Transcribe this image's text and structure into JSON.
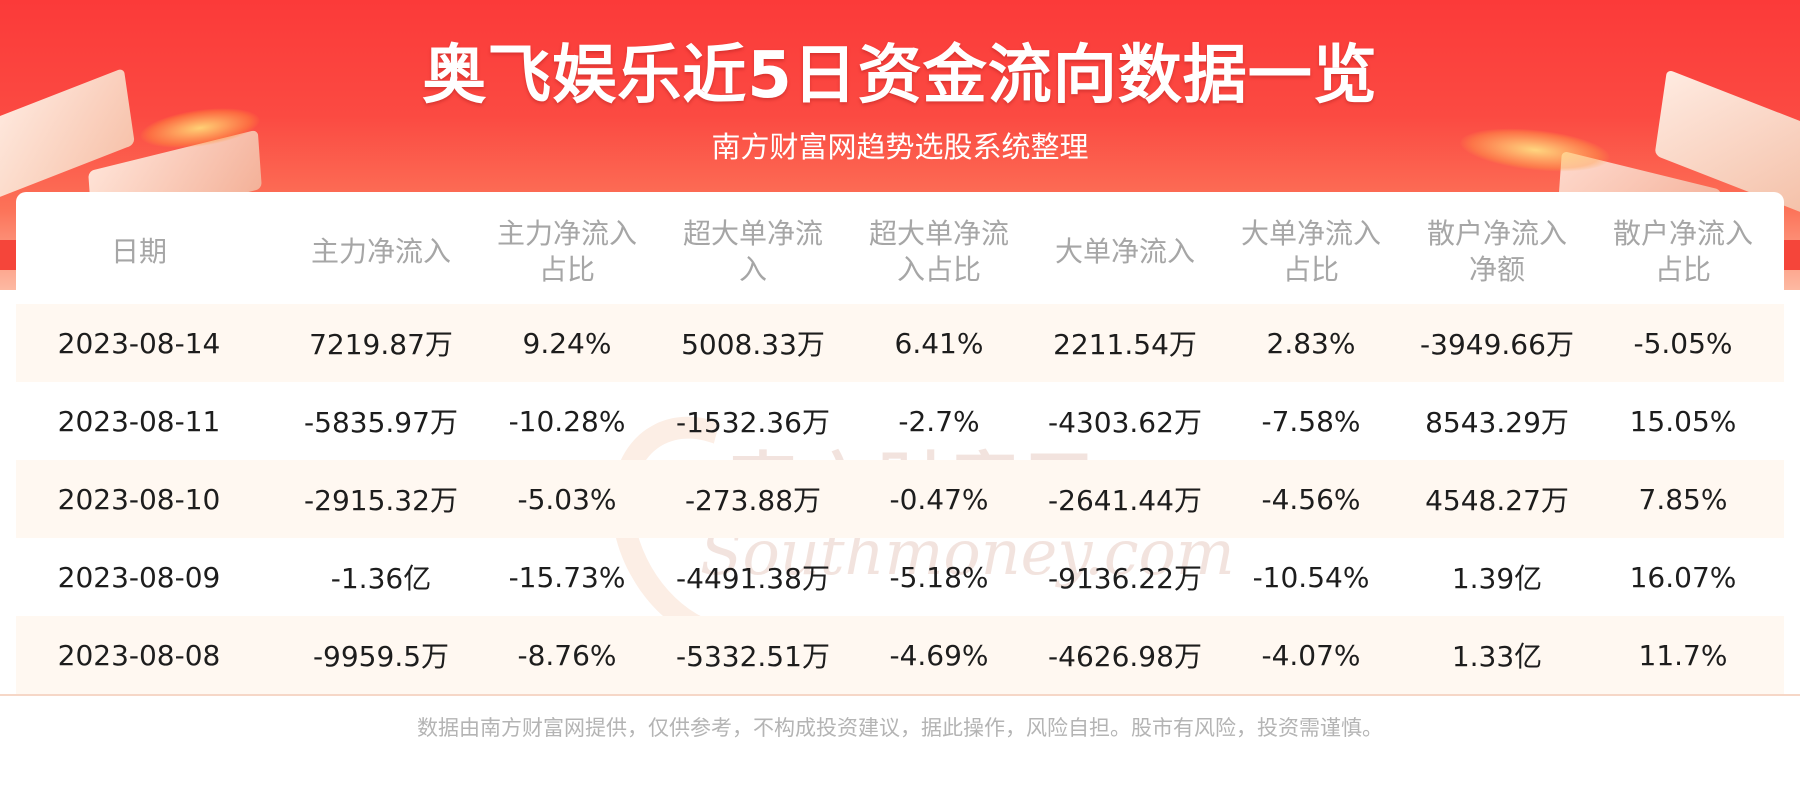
{
  "header": {
    "title": "奥飞娱乐近5日资金流向数据一览",
    "subtitle": "南方财富网趋势选股系统整理"
  },
  "table": {
    "columns": [
      "日期",
      "主力净流入",
      "主力净流入占比",
      "超大单净流入",
      "超大单净流入占比",
      "大单净流入",
      "大单净流入占比",
      "散户净流入净额",
      "散户净流入占比"
    ],
    "rows": [
      [
        "2023-08-14",
        "7219.87万",
        "9.24%",
        "5008.33万",
        "6.41%",
        "2211.54万",
        "2.83%",
        "-3949.66万",
        "-5.05%"
      ],
      [
        "2023-08-11",
        "-5835.97万",
        "-10.28%",
        "-1532.36万",
        "-2.7%",
        "-4303.62万",
        "-7.58%",
        "8543.29万",
        "15.05%"
      ],
      [
        "2023-08-10",
        "-2915.32万",
        "-5.03%",
        "-273.88万",
        "-0.47%",
        "-2641.44万",
        "-4.56%",
        "4548.27万",
        "7.85%"
      ],
      [
        "2023-08-09",
        "-1.36亿",
        "-15.73%",
        "-4491.38万",
        "-5.18%",
        "-9136.22万",
        "-10.54%",
        "1.39亿",
        "16.07%"
      ],
      [
        "2023-08-08",
        "-9959.5万",
        "-8.76%",
        "-5332.51万",
        "-4.69%",
        "-4626.98万",
        "-4.07%",
        "1.33亿",
        "11.7%"
      ]
    ]
  },
  "watermark": {
    "cn": "南方财富网",
    "en": "Southmoney.com"
  },
  "footer": {
    "disclaimer": "数据由南方财富网提供，仅供参考，不构成投资建议，据此操作，风险自担。股市有风险，投资需谨慎。"
  },
  "colors": {
    "banner_red": "#fb3a39",
    "row_alt": "#fff8f1",
    "header_text": "#a6a6a6",
    "body_text": "#1d1d1d",
    "footer_text": "#b4b4b4"
  }
}
